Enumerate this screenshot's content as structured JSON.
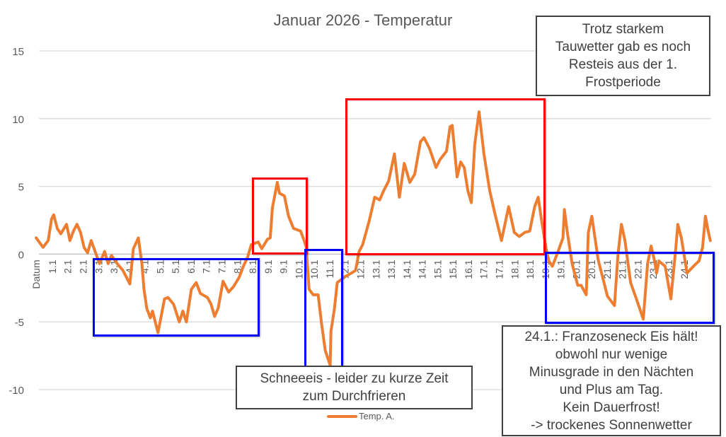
{
  "chart_data": {
    "type": "line",
    "title": "Januar 2026 - Temperatur",
    "xlabel": "Datum",
    "ylabel": "",
    "ylim": [
      -10,
      15
    ],
    "yticks": [
      15,
      10,
      5,
      0,
      -5,
      -10
    ],
    "grid": true,
    "legend_position": "bottom",
    "categories": [
      "1.1",
      "2.1",
      "2.1",
      "3.1",
      "3.1",
      "4.1",
      "4.1",
      "5.1",
      "5.1",
      "6.1",
      "7.1",
      "7.1",
      "8.1",
      "8.1",
      "9.1",
      "9.1",
      "10.1",
      "10.1",
      "11.1",
      "12.1",
      "12.1",
      "13.1",
      "13.1",
      "14.1",
      "14.1",
      "15.1",
      "15.1",
      "16.1",
      "17.1",
      "17.1",
      "18.1",
      "18.1",
      "19.1",
      "19.1",
      "20.1",
      "20.1",
      "21.1",
      "21.1",
      "22.1",
      "23.1",
      "23.1",
      "24.1"
    ],
    "xlim": [
      -1.1,
      42.8
    ],
    "series": [
      {
        "name": "Temp. A.",
        "color": "#ED7D31",
        "points": [
          [
            -1.05,
            1.2
          ],
          [
            -0.6,
            0.5
          ],
          [
            -0.27,
            1.0
          ],
          [
            -0.05,
            2.6
          ],
          [
            0.09,
            2.9
          ],
          [
            0.32,
            1.9
          ],
          [
            0.55,
            1.5
          ],
          [
            0.92,
            2.2
          ],
          [
            1.14,
            1.0
          ],
          [
            1.37,
            1.7
          ],
          [
            1.6,
            2.2
          ],
          [
            1.83,
            1.6
          ],
          [
            2.06,
            0.5
          ],
          [
            2.29,
            0.1
          ],
          [
            2.52,
            1.0
          ],
          [
            2.84,
            0.0
          ],
          [
            3.07,
            -0.7
          ],
          [
            3.39,
            0.2
          ],
          [
            3.62,
            -0.7
          ],
          [
            3.84,
            -0.1
          ],
          [
            4.21,
            -0.7
          ],
          [
            4.58,
            -1.2
          ],
          [
            5.03,
            -2.2
          ],
          [
            5.26,
            0.4
          ],
          [
            5.58,
            1.2
          ],
          [
            5.81,
            -0.7
          ],
          [
            5.95,
            -2.6
          ],
          [
            6.13,
            -4.0
          ],
          [
            6.36,
            -4.7
          ],
          [
            6.5,
            -4.2
          ],
          [
            6.86,
            -5.8
          ],
          [
            7.28,
            -3.3
          ],
          [
            7.51,
            -3.2
          ],
          [
            7.87,
            -3.7
          ],
          [
            8.24,
            -5.0
          ],
          [
            8.47,
            -4.2
          ],
          [
            8.7,
            -5.0
          ],
          [
            9.02,
            -2.6
          ],
          [
            9.34,
            -2.1
          ],
          [
            9.61,
            -2.9
          ],
          [
            10.07,
            -3.2
          ],
          [
            10.3,
            -3.7
          ],
          [
            10.53,
            -4.6
          ],
          [
            10.76,
            -4.0
          ],
          [
            11.08,
            -2.0
          ],
          [
            11.44,
            -2.8
          ],
          [
            11.76,
            -2.4
          ],
          [
            12.13,
            -1.7
          ],
          [
            12.36,
            -1.0
          ],
          [
            12.68,
            -0.2
          ],
          [
            12.91,
            0.7
          ],
          [
            13.36,
            0.9
          ],
          [
            13.59,
            0.4
          ],
          [
            13.96,
            1.1
          ],
          [
            14.14,
            1.2
          ],
          [
            14.28,
            3.4
          ],
          [
            14.6,
            5.3
          ],
          [
            14.74,
            4.5
          ],
          [
            15.06,
            4.3
          ],
          [
            15.33,
            2.8
          ],
          [
            15.65,
            1.9
          ],
          [
            16.11,
            1.7
          ],
          [
            16.34,
            1.0
          ],
          [
            16.48,
            0.5
          ],
          [
            16.66,
            -2.6
          ],
          [
            16.93,
            -3.0
          ],
          [
            17.25,
            -3.0
          ],
          [
            17.48,
            -5.2
          ],
          [
            17.71,
            -7.1
          ],
          [
            18.03,
            -8.2
          ],
          [
            18.08,
            -5.7
          ],
          [
            18.31,
            -4.0
          ],
          [
            18.49,
            -2.1
          ],
          [
            18.95,
            -1.7
          ],
          [
            19.41,
            -1.4
          ],
          [
            19.68,
            -1.2
          ],
          [
            19.91,
            0.2
          ],
          [
            20.14,
            0.7
          ],
          [
            20.55,
            2.4
          ],
          [
            20.92,
            4.2
          ],
          [
            21.24,
            4.0
          ],
          [
            21.51,
            4.7
          ],
          [
            21.83,
            5.4
          ],
          [
            22.2,
            7.4
          ],
          [
            22.52,
            4.2
          ],
          [
            22.84,
            6.7
          ],
          [
            23.2,
            5.3
          ],
          [
            23.52,
            5.9
          ],
          [
            23.89,
            8.3
          ],
          [
            24.12,
            8.6
          ],
          [
            24.48,
            7.8
          ],
          [
            24.9,
            6.4
          ],
          [
            25.17,
            7.0
          ],
          [
            25.58,
            7.6
          ],
          [
            25.81,
            9.4
          ],
          [
            25.95,
            9.5
          ],
          [
            26.27,
            5.7
          ],
          [
            26.5,
            6.8
          ],
          [
            26.73,
            6.4
          ],
          [
            26.96,
            4.7
          ],
          [
            27.19,
            3.8
          ],
          [
            27.41,
            8.1
          ],
          [
            27.69,
            10.5
          ],
          [
            28.01,
            7.4
          ],
          [
            28.38,
            4.7
          ],
          [
            28.7,
            3.1
          ],
          [
            29.15,
            1.0
          ],
          [
            29.61,
            3.5
          ],
          [
            29.98,
            1.6
          ],
          [
            30.3,
            1.3
          ],
          [
            30.66,
            1.6
          ],
          [
            30.98,
            1.7
          ],
          [
            31.3,
            3.5
          ],
          [
            31.53,
            4.2
          ],
          [
            31.76,
            2.4
          ],
          [
            32.04,
            0.4
          ],
          [
            32.22,
            -0.5
          ],
          [
            32.45,
            -0.9
          ],
          [
            32.82,
            0.2
          ],
          [
            33.14,
            1.2
          ],
          [
            33.23,
            3.3
          ],
          [
            33.41,
            1.7
          ],
          [
            33.73,
            -0.7
          ],
          [
            34.1,
            -2.3
          ],
          [
            34.32,
            -2.3
          ],
          [
            34.65,
            -3.0
          ],
          [
            34.78,
            1.6
          ],
          [
            35.01,
            2.8
          ],
          [
            35.42,
            -0.4
          ],
          [
            36.02,
            -3.1
          ],
          [
            36.48,
            -3.8
          ],
          [
            36.71,
            0.0
          ],
          [
            36.93,
            2.2
          ],
          [
            37.16,
            1.0
          ],
          [
            37.53,
            -2.1
          ],
          [
            37.99,
            -3.6
          ],
          [
            38.35,
            -4.8
          ],
          [
            38.63,
            -0.7
          ],
          [
            38.86,
            0.6
          ],
          [
            39.08,
            -0.5
          ],
          [
            39.22,
            -1.4
          ],
          [
            39.36,
            -0.5
          ],
          [
            39.77,
            -0.9
          ],
          [
            40.14,
            -3.3
          ],
          [
            40.46,
            0.4
          ],
          [
            40.59,
            2.2
          ],
          [
            40.82,
            1.2
          ],
          [
            41.19,
            -1.4
          ],
          [
            41.6,
            -0.9
          ],
          [
            41.97,
            -0.5
          ],
          [
            42.2,
            0.5
          ],
          [
            42.38,
            2.8
          ],
          [
            42.56,
            1.7
          ],
          [
            42.7,
            1.0
          ]
        ]
      }
    ]
  },
  "annotations": {
    "top_right": "Trotz starkem\nTauwetter gab es noch\nResteis aus der 1.\nFrostperiode",
    "middle": "Schneeeis - leider zu kurze Zeit\nzum Durchfrieren",
    "bottom_right": "24.1.: Franzoseneck Eis hält!\nobwohl nur wenige\nMinusgrade in den Nächten\nund Plus am Tag.\nKein Dauerfrost!\n-> trockenes Sonnenwetter"
  },
  "colors": {
    "frost_box": "#0000FF",
    "thaw_box": "#FF0000",
    "gridline": "#D9D9D9",
    "text": "#595959"
  }
}
